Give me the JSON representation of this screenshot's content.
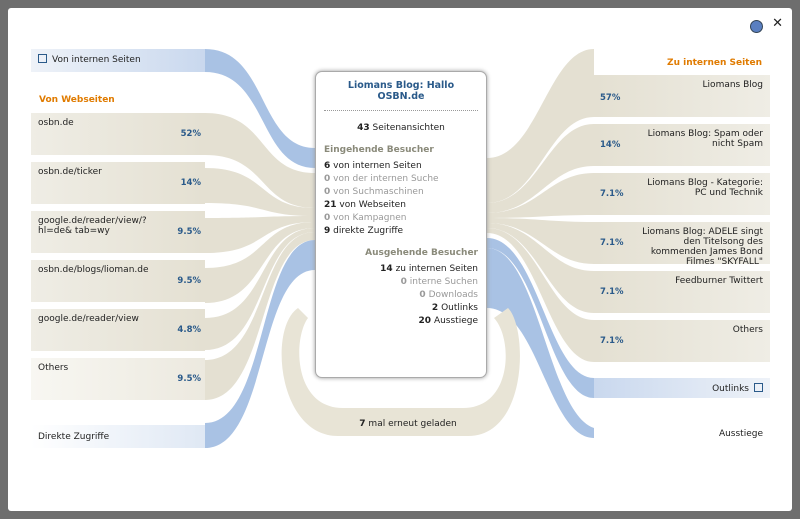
{
  "popup": {
    "center": {
      "title": "Liomans Blog: Hallo OSBN.de",
      "pageviews": {
        "count": 43,
        "label": "Seitenansichten"
      },
      "incoming": {
        "heading": "Eingehende Besucher",
        "items": [
          {
            "count": 6,
            "label": "von internen Seiten"
          },
          {
            "count": 0,
            "label": "von der internen Suche"
          },
          {
            "count": 0,
            "label": "von Suchmaschinen"
          },
          {
            "count": 21,
            "label": "von Webseiten"
          },
          {
            "count": 0,
            "label": "von Kampagnen"
          },
          {
            "count": 9,
            "label": "direkte Zugriffe"
          }
        ]
      },
      "outgoing": {
        "heading": "Ausgehende Besucher",
        "items": [
          {
            "count": 14,
            "label": "zu internen Seiten"
          },
          {
            "count": 0,
            "label": "interne Suchen"
          },
          {
            "count": 0,
            "label": "Downloads"
          },
          {
            "count": 2,
            "label": "Outlinks"
          },
          {
            "count": 20,
            "label": "Ausstiege"
          }
        ]
      }
    },
    "reloads": {
      "count": 7,
      "label": "mal erneut geladen"
    },
    "left": {
      "internal": "Von internen Seiten",
      "websites_heading": "Von Webseiten",
      "websites": [
        {
          "label": "osbn.de",
          "share": "52%"
        },
        {
          "label": "osbn.de/ticker",
          "share": "14%"
        },
        {
          "label": "google.de/reader/view/?hl=de& tab=wy",
          "share": "9.5%"
        },
        {
          "label": "osbn.de/blogs/lioman.de",
          "share": "9.5%"
        },
        {
          "label": "google.de/reader/view",
          "share": "4.8%"
        },
        {
          "label": "Others",
          "share": "9.5%"
        }
      ],
      "direct": "Direkte Zugriffe"
    },
    "right": {
      "heading": "Zu internen Seiten",
      "pages": [
        {
          "label": "Liomans Blog",
          "share": "57%"
        },
        {
          "label": "Liomans Blog: Spam oder nicht Spam",
          "share": "14%"
        },
        {
          "label": "Liomans Blog - Kategorie: PC und Technik",
          "share": "7.1%"
        },
        {
          "label": "Liomans Blog: ADELE singt den Titelsong des kommenden James Bond Filmes \"SKYFALL\"",
          "share": "7.1%"
        },
        {
          "label": "Feedburner Twittert",
          "share": "7.1%"
        },
        {
          "label": "Others",
          "share": "7.1%"
        }
      ],
      "outlinks": "Outlinks",
      "exits": "Ausstiege"
    }
  }
}
